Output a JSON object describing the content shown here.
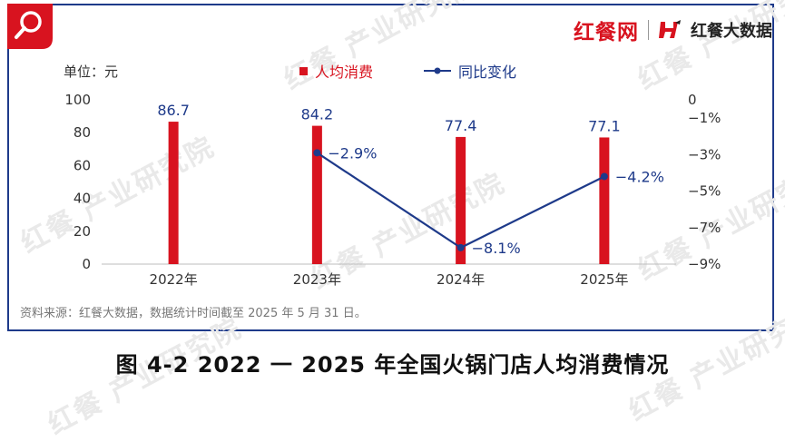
{
  "brand": {
    "left_text": "红餐网",
    "right_text": "红餐大数据"
  },
  "watermark_text": "红餐 产业研究院",
  "unit_label": "单位：元",
  "source_note": "资料来源：红餐大数据，数据统计时间截至 2025 年 5 月 31 日。",
  "caption": "图 4-2    2022 一 2025 年全国火锅门店人均消费情况",
  "colors": {
    "bar": "#d8131f",
    "line": "#1e3a8a",
    "frame": "#1e3a8a"
  },
  "chart_data": {
    "type": "bar",
    "categories": [
      "2022年",
      "2023年",
      "2024年",
      "2025年"
    ],
    "series": [
      {
        "name": "人均消费",
        "type": "bar",
        "axis": "left",
        "values": [
          86.7,
          84.2,
          77.4,
          77.1
        ],
        "labels": [
          "86.7",
          "84.2",
          "77.4",
          "77.1"
        ]
      },
      {
        "name": "同比变化",
        "type": "line",
        "axis": "right",
        "values": [
          null,
          -2.9,
          -8.1,
          -4.2
        ],
        "labels": [
          "",
          "−2.9%",
          "−8.1%",
          "−4.2%"
        ]
      }
    ],
    "y_left": {
      "ylim": [
        0,
        100
      ],
      "ticks": [
        0,
        20,
        40,
        60,
        80,
        100
      ],
      "tick_labels": [
        "0",
        "20",
        "40",
        "60",
        "80",
        "100"
      ]
    },
    "y_right": {
      "ylim": [
        -9,
        0
      ],
      "ticks": [
        0,
        -1,
        -3,
        -5,
        -7,
        -9
      ],
      "tick_labels": [
        "0",
        "−1%",
        "−3%",
        "−5%",
        "−7%",
        "−9%"
      ]
    },
    "legend_position": "top-center",
    "grid": false
  }
}
